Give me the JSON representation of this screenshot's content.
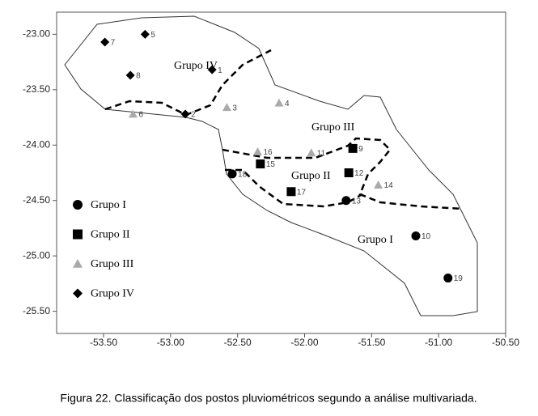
{
  "chart_data": {
    "type": "scatter",
    "caption": "Figura 22. Classificação dos postos pluviométricos segundo a análise multivariada.",
    "annotations": [
      "Grupo IV",
      "Grupo III",
      "Grupo II",
      "Grupo I"
    ],
    "xlim": [
      -53.85,
      -50.5
    ],
    "ylim": [
      -25.7,
      -22.8
    ],
    "xticks": [
      {
        "value": -53.5,
        "label": "-53.50"
      },
      {
        "value": -53,
        "label": "-53.00"
      },
      {
        "value": -52.5,
        "label": "-52.50"
      },
      {
        "value": -52,
        "label": "-52.00"
      },
      {
        "value": -51.5,
        "label": "-51.50"
      },
      {
        "value": -51,
        "label": "-51.00"
      },
      {
        "value": -50.5,
        "label": "-50.50"
      }
    ],
    "yticks": [
      {
        "value": -23,
        "label": "-23.00"
      },
      {
        "value": -23.5,
        "label": "-23.50"
      },
      {
        "value": -24,
        "label": "-24.00"
      },
      {
        "value": -24.5,
        "label": "-24.50"
      },
      {
        "value": -25,
        "label": "-25.00"
      },
      {
        "value": -25.5,
        "label": "-25.50"
      }
    ],
    "legend": "lower left",
    "series": [
      {
        "name": "Grupo I",
        "marker": "circle",
        "color": "#000000",
        "point_labels": [
          "18",
          "13",
          "10",
          "19"
        ],
        "x": [
          -52.54,
          -51.69,
          -51.17,
          -50.93
        ],
        "values": [
          -24.26,
          -24.5,
          -24.82,
          -25.2
        ]
      },
      {
        "name": "Grupo II",
        "marker": "square",
        "color": "#000000",
        "point_labels": [
          "15",
          "9",
          "12",
          "17"
        ],
        "x": [
          -52.33,
          -51.64,
          -51.67,
          -52.1
        ],
        "values": [
          -24.17,
          -24.03,
          -24.25,
          -24.42
        ]
      },
      {
        "name": "Grupo III",
        "marker": "triangle",
        "color": "#aaaaaa",
        "point_labels": [
          "3",
          "4",
          "6",
          "16",
          "11",
          "14"
        ],
        "x": [
          -52.58,
          -52.19,
          -53.28,
          -52.35,
          -51.95,
          -51.45
        ],
        "values": [
          -23.66,
          -23.62,
          -23.72,
          -24.06,
          -24.07,
          -24.36
        ]
      },
      {
        "name": "Grupo IV",
        "marker": "diamond",
        "color": "#000000",
        "point_labels": [
          "7",
          "5",
          "8",
          "1",
          "2"
        ],
        "x": [
          -53.49,
          -53.19,
          -53.3,
          -52.69,
          -52.89
        ],
        "values": [
          -23.07,
          -23.0,
          -23.37,
          -23.32,
          -23.72
        ]
      }
    ]
  }
}
